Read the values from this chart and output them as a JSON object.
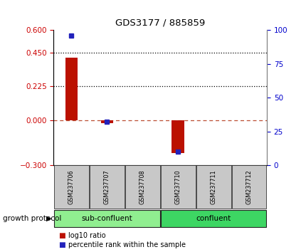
{
  "title": "GDS3177 / 885859",
  "samples": [
    "GSM237706",
    "GSM237707",
    "GSM237708",
    "GSM237710",
    "GSM237711",
    "GSM237712"
  ],
  "log10_ratio": [
    0.415,
    -0.02,
    0.0,
    -0.22,
    0.0,
    0.0
  ],
  "percentile_rank_idx": [
    0,
    1,
    3
  ],
  "percentile_rank_vals": [
    96,
    32,
    10
  ],
  "ylim_left": [
    -0.3,
    0.6
  ],
  "ylim_right": [
    0,
    100
  ],
  "yticks_left": [
    -0.3,
    0,
    0.225,
    0.45,
    0.6
  ],
  "yticks_right": [
    0,
    25,
    50,
    75,
    100
  ],
  "hline_dotted": [
    0.225,
    0.45
  ],
  "groups": [
    {
      "label": "sub-confluent",
      "start": 0,
      "end": 3,
      "color": "#90EE90"
    },
    {
      "label": "confluent",
      "start": 3,
      "end": 6,
      "color": "#3DD663"
    }
  ],
  "group_label": "growth protocol",
  "bar_color_red": "#BB1100",
  "bar_color_blue": "#2222BB",
  "tick_color_left": "#CC0000",
  "tick_color_right": "#0000CC",
  "legend_red": "log10 ratio",
  "legend_blue": "percentile rank within the sample",
  "bar_width": 0.35,
  "bg_label": "#C8C8C8"
}
